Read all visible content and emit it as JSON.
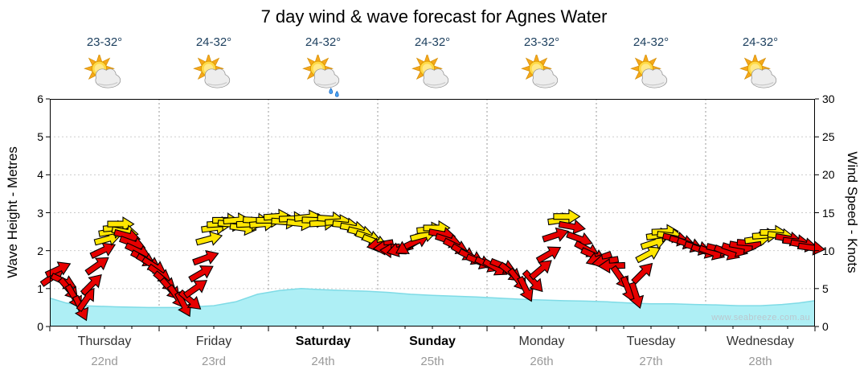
{
  "title": "7 day wind & wave forecast for Agnes Water",
  "watermark": "www.seabreeze.com.au",
  "axes": {
    "left_label": "Wave Height - Metres",
    "right_label": "Wind Speed - Knots",
    "left_ticks": [
      0,
      1,
      2,
      3,
      4,
      5,
      6
    ],
    "right_ticks": [
      0,
      5,
      10,
      15,
      20,
      25,
      30
    ]
  },
  "days": [
    {
      "name": "Thursday",
      "date": "22nd",
      "temp": "23-32°",
      "weekend": false,
      "icon": "partly-cloudy"
    },
    {
      "name": "Friday",
      "date": "23rd",
      "temp": "24-32°",
      "weekend": false,
      "icon": "partly-cloudy"
    },
    {
      "name": "Saturday",
      "date": "24th",
      "temp": "24-32°",
      "weekend": true,
      "icon": "partly-cloudy-showers"
    },
    {
      "name": "Sunday",
      "date": "25th",
      "temp": "24-32°",
      "weekend": true,
      "icon": "partly-cloudy"
    },
    {
      "name": "Monday",
      "date": "26th",
      "temp": "23-32°",
      "weekend": false,
      "icon": "partly-cloudy"
    },
    {
      "name": "Tuesday",
      "date": "27th",
      "temp": "24-32°",
      "weekend": false,
      "icon": "partly-cloudy"
    },
    {
      "name": "Wednesday",
      "date": "28th",
      "temp": "24-32°",
      "weekend": false,
      "icon": "partly-cloudy"
    }
  ],
  "colors": {
    "arrow_red": "#e60000",
    "arrow_yellow": "#ffe600",
    "arrow_outline": "#000000",
    "wave_fill": "#aeeff5",
    "wave_edge": "#7fdbe6",
    "grid": "#cccccc",
    "day_grid": "#9a9a9a",
    "axis": "#000000",
    "temp_text": "#1c3f5e",
    "day_text": "#333333",
    "date_text": "#999999",
    "watermark_text": "#b9c7ce"
  },
  "chart_data": {
    "type": "area+wind_arrows",
    "x_axis": {
      "unit": "days",
      "range": [
        0,
        7
      ],
      "categories": [
        "Thursday 22nd",
        "Friday 23rd",
        "Saturday 24th",
        "Sunday 25th",
        "Monday 26th",
        "Tuesday 27th",
        "Wednesday 28th"
      ]
    },
    "ylim_left_metres": [
      0,
      6
    ],
    "ylim_right_knots": [
      0,
      30
    ],
    "wave_height_m": {
      "series_name": "Wave Height (m)",
      "points": [
        [
          0,
          0.75
        ],
        [
          0.15,
          0.62
        ],
        [
          0.3,
          0.55
        ],
        [
          0.6,
          0.52
        ],
        [
          0.9,
          0.5
        ],
        [
          1.2,
          0.5
        ],
        [
          1.5,
          0.55
        ],
        [
          1.7,
          0.65
        ],
        [
          1.9,
          0.85
        ],
        [
          2.1,
          0.95
        ],
        [
          2.3,
          1.0
        ],
        [
          2.5,
          0.97
        ],
        [
          2.7,
          0.95
        ],
        [
          2.9,
          0.93
        ],
        [
          3.1,
          0.9
        ],
        [
          3.3,
          0.85
        ],
        [
          3.5,
          0.82
        ],
        [
          3.7,
          0.8
        ],
        [
          3.9,
          0.78
        ],
        [
          4.1,
          0.75
        ],
        [
          4.3,
          0.72
        ],
        [
          4.5,
          0.7
        ],
        [
          4.7,
          0.68
        ],
        [
          4.9,
          0.67
        ],
        [
          5.1,
          0.65
        ],
        [
          5.3,
          0.62
        ],
        [
          5.5,
          0.6
        ],
        [
          5.7,
          0.6
        ],
        [
          5.9,
          0.58
        ],
        [
          6.1,
          0.57
        ],
        [
          6.3,
          0.55
        ],
        [
          6.5,
          0.55
        ],
        [
          6.7,
          0.58
        ],
        [
          6.85,
          0.62
        ],
        [
          7,
          0.68
        ]
      ]
    },
    "wind_arrows": {
      "series_name": "Wind Speed & Direction",
      "format": [
        "day_x",
        "knots",
        "angle_deg",
        "color(r=red,y=yellow)"
      ],
      "points": [
        [
          0.02,
          6.5,
          -35,
          "r"
        ],
        [
          0.07,
          7.5,
          -25,
          "r"
        ],
        [
          0.12,
          6.0,
          25,
          "r"
        ],
        [
          0.17,
          5.0,
          50,
          "r"
        ],
        [
          0.22,
          4.0,
          60,
          "r"
        ],
        [
          0.28,
          2.5,
          65,
          "r"
        ],
        [
          0.33,
          3.5,
          -55,
          "r"
        ],
        [
          0.38,
          5.5,
          -45,
          "r"
        ],
        [
          0.43,
          8.0,
          -35,
          "r"
        ],
        [
          0.48,
          10.0,
          -25,
          "r"
        ],
        [
          0.52,
          11.5,
          -15,
          "y"
        ],
        [
          0.56,
          12.5,
          -10,
          "y"
        ],
        [
          0.6,
          13.0,
          -5,
          "y"
        ],
        [
          0.64,
          13.5,
          0,
          "y"
        ],
        [
          0.68,
          12.5,
          10,
          "y"
        ],
        [
          0.7,
          12.0,
          15,
          "r"
        ],
        [
          0.75,
          11.0,
          20,
          "r"
        ],
        [
          0.8,
          10.0,
          25,
          "r"
        ],
        [
          0.85,
          9.0,
          28,
          "r"
        ],
        [
          0.9,
          8.5,
          30,
          "r"
        ],
        [
          0.95,
          8.0,
          32,
          "r"
        ],
        [
          1.0,
          7.0,
          35,
          "r"
        ],
        [
          1.05,
          6.0,
          40,
          "r"
        ],
        [
          1.1,
          5.0,
          48,
          "r"
        ],
        [
          1.16,
          4.0,
          55,
          "r"
        ],
        [
          1.22,
          3.0,
          62,
          "r"
        ],
        [
          1.28,
          3.5,
          40,
          "r"
        ],
        [
          1.33,
          5.0,
          -35,
          "r"
        ],
        [
          1.38,
          7.0,
          -30,
          "r"
        ],
        [
          1.42,
          9.0,
          -20,
          "r"
        ],
        [
          1.45,
          11.5,
          -15,
          "y"
        ],
        [
          1.5,
          13.0,
          -8,
          "y"
        ],
        [
          1.55,
          13.5,
          -3,
          "y"
        ],
        [
          1.6,
          14.0,
          0,
          "y"
        ],
        [
          1.65,
          13.5,
          5,
          "y"
        ],
        [
          1.7,
          14.0,
          -4,
          "y"
        ],
        [
          1.76,
          13.0,
          8,
          "y"
        ],
        [
          1.82,
          13.5,
          -2,
          "y"
        ],
        [
          1.88,
          14.0,
          3,
          "y"
        ],
        [
          1.94,
          13.5,
          -5,
          "y"
        ],
        [
          2.0,
          14.0,
          0,
          "y"
        ],
        [
          2.07,
          14.5,
          -4,
          "y"
        ],
        [
          2.14,
          13.8,
          4,
          "y"
        ],
        [
          2.21,
          14.2,
          -2,
          "y"
        ],
        [
          2.28,
          13.6,
          6,
          "y"
        ],
        [
          2.35,
          14.4,
          -6,
          "y"
        ],
        [
          2.42,
          14.0,
          2,
          "y"
        ],
        [
          2.49,
          13.6,
          -3,
          "y"
        ],
        [
          2.56,
          14.2,
          4,
          "y"
        ],
        [
          2.63,
          13.8,
          -4,
          "y"
        ],
        [
          2.7,
          13.4,
          6,
          "y"
        ],
        [
          2.77,
          13.0,
          10,
          "y"
        ],
        [
          2.84,
          12.4,
          14,
          "y"
        ],
        [
          2.91,
          11.8,
          18,
          "y"
        ],
        [
          2.97,
          11.2,
          22,
          "y"
        ],
        [
          3.03,
          10.8,
          170,
          "r"
        ],
        [
          3.09,
          10.4,
          176,
          "r"
        ],
        [
          3.15,
          10.0,
          182,
          "r"
        ],
        [
          3.21,
          10.2,
          165,
          "r"
        ],
        [
          3.28,
          10.6,
          150,
          "r"
        ],
        [
          3.35,
          11.2,
          -25,
          "r"
        ],
        [
          3.41,
          12.0,
          -15,
          "y"
        ],
        [
          3.47,
          12.8,
          -6,
          "y"
        ],
        [
          3.53,
          13.0,
          0,
          "y"
        ],
        [
          3.58,
          12.2,
          10,
          "r"
        ],
        [
          3.64,
          11.4,
          18,
          "r"
        ],
        [
          3.71,
          10.6,
          26,
          "r"
        ],
        [
          3.78,
          9.8,
          30,
          "r"
        ],
        [
          3.85,
          9.2,
          26,
          "r"
        ],
        [
          3.92,
          8.6,
          22,
          "r"
        ],
        [
          4.0,
          8.2,
          25,
          "r"
        ],
        [
          4.07,
          7.8,
          30,
          "r"
        ],
        [
          4.14,
          8.0,
          22,
          "r"
        ],
        [
          4.21,
          7.2,
          38,
          "r"
        ],
        [
          4.28,
          6.2,
          52,
          "r"
        ],
        [
          4.35,
          5.0,
          64,
          "r"
        ],
        [
          4.42,
          6.0,
          48,
          "r"
        ],
        [
          4.49,
          7.5,
          -40,
          "r"
        ],
        [
          4.56,
          9.5,
          -30,
          "r"
        ],
        [
          4.62,
          12.0,
          -18,
          "r"
        ],
        [
          4.67,
          14.0,
          -8,
          "y"
        ],
        [
          4.72,
          14.5,
          0,
          "y"
        ],
        [
          4.77,
          13.2,
          10,
          "r"
        ],
        [
          4.84,
          11.6,
          20,
          "r"
        ],
        [
          4.91,
          10.2,
          28,
          "r"
        ],
        [
          4.97,
          9.4,
          24,
          "r"
        ],
        [
          5.03,
          9.0,
          160,
          "r"
        ],
        [
          5.09,
          8.6,
          170,
          "r"
        ],
        [
          5.15,
          8.0,
          178,
          "r"
        ],
        [
          5.22,
          6.5,
          55,
          "r"
        ],
        [
          5.29,
          5.0,
          68,
          "r"
        ],
        [
          5.36,
          4.2,
          72,
          "r"
        ],
        [
          5.42,
          7.0,
          -45,
          "r"
        ],
        [
          5.47,
          9.5,
          -28,
          "y"
        ],
        [
          5.52,
          11.0,
          -18,
          "y"
        ],
        [
          5.57,
          12.0,
          -8,
          "y"
        ],
        [
          5.62,
          12.5,
          -2,
          "y"
        ],
        [
          5.67,
          12.0,
          6,
          "y"
        ],
        [
          5.72,
          11.6,
          12,
          "r"
        ],
        [
          5.78,
          11.2,
          16,
          "r"
        ],
        [
          5.85,
          10.8,
          20,
          "r"
        ],
        [
          5.92,
          10.4,
          16,
          "r"
        ],
        [
          5.98,
          10.0,
          18,
          "r"
        ],
        [
          6.05,
          9.8,
          20,
          "r"
        ],
        [
          6.12,
          10.2,
          14,
          "r"
        ],
        [
          6.19,
          9.8,
          22,
          "r"
        ],
        [
          6.26,
          10.2,
          18,
          "r"
        ],
        [
          6.33,
          10.6,
          10,
          "r"
        ],
        [
          6.4,
          11.0,
          4,
          "r"
        ],
        [
          6.47,
          11.5,
          -8,
          "y"
        ],
        [
          6.54,
          12.0,
          -4,
          "y"
        ],
        [
          6.61,
          12.4,
          0,
          "y"
        ],
        [
          6.68,
          12.0,
          6,
          "y"
        ],
        [
          6.75,
          11.6,
          10,
          "r"
        ],
        [
          6.82,
          11.2,
          6,
          "r"
        ],
        [
          6.89,
          10.8,
          10,
          "r"
        ],
        [
          6.96,
          10.4,
          8,
          "r"
        ]
      ]
    }
  }
}
